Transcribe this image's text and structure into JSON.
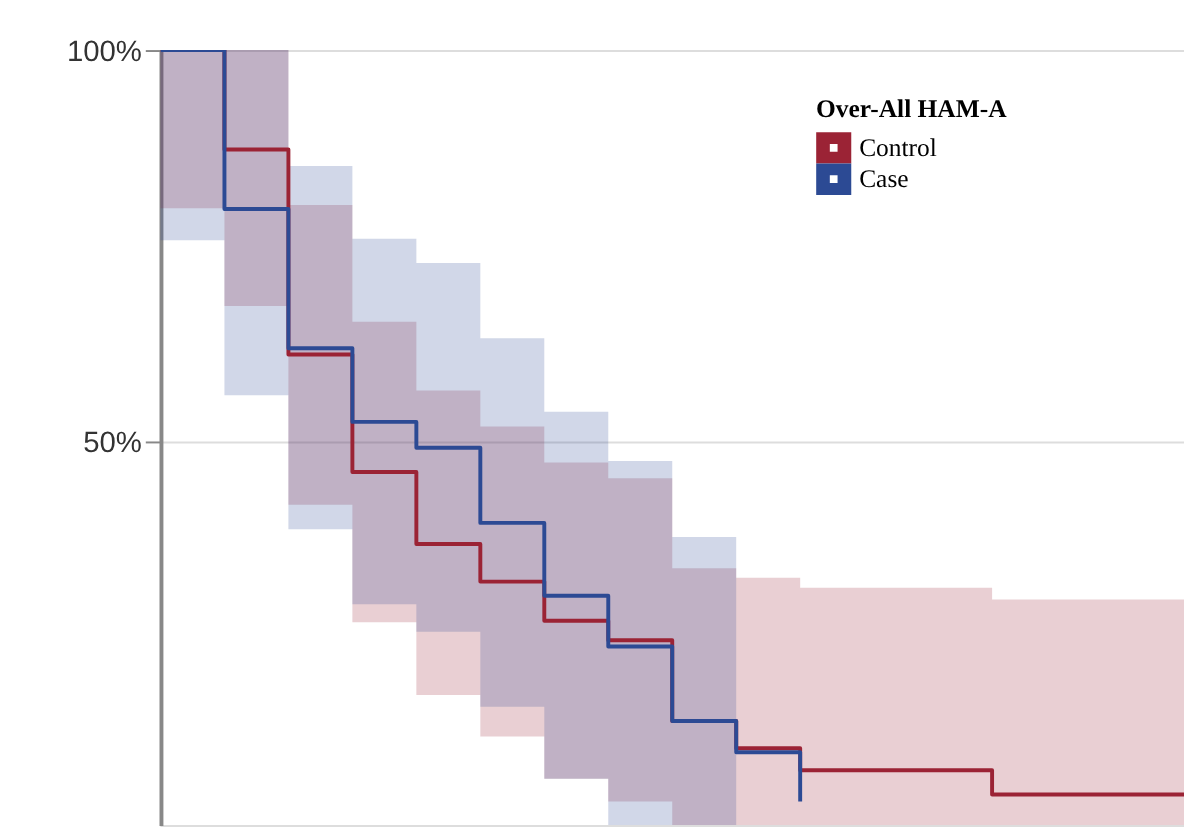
{
  "chart_data": {
    "type": "step",
    "legend_title": "Over-All HAM-A",
    "legend": "top right",
    "grid": "y",
    "tick_labels": "y",
    "line_style": "solid",
    "ylim": [
      1,
      100
    ],
    "categories": [
      null,
      null,
      null,
      null,
      null,
      null,
      null,
      null,
      null,
      null,
      null,
      null,
      null,
      null,
      null,
      null,
      null
    ],
    "yticks": [
      {
        "value": 50,
        "label": "50%"
      },
      {
        "value": 100,
        "label": "100%"
      }
    ],
    "series": [
      {
        "name": "Control",
        "color": "#9b2335",
        "values": [
          100,
          87.3,
          61.1,
          46.1,
          36.9,
          32.1,
          27.1,
          24.6,
          14.3,
          10.8,
          8,
          8,
          8,
          4.9,
          4.9,
          4.9,
          4.9
        ],
        "lower": [
          79.8,
          67.3,
          41.9,
          26.9,
          17.6,
          12.3,
          6.9,
          4,
          1,
          1,
          1,
          1,
          1,
          1,
          1,
          1,
          1
        ],
        "upper": [
          100,
          100,
          80.2,
          65.3,
          56.5,
          51.9,
          47.3,
          45.3,
          33.8,
          32.6,
          31.3,
          31.3,
          31.3,
          29.8,
          29.8,
          29.8,
          29.8
        ]
      },
      {
        "name": "Case",
        "color": "#2c4a94",
        "values": [
          100,
          79.7,
          61.9,
          52.5,
          49.2,
          39.6,
          30.3,
          23.8,
          14.3,
          10.3,
          4,
          null,
          null,
          null,
          null,
          null,
          null
        ],
        "lower": [
          75.7,
          55.9,
          38.8,
          29.2,
          25.7,
          16.1,
          6.9,
          1,
          1,
          1,
          null,
          null,
          null,
          null,
          null,
          null,
          null
        ],
        "upper": [
          100,
          100,
          85.2,
          75.9,
          72.8,
          63.2,
          53.8,
          47.5,
          37.8,
          35.7,
          null,
          null,
          null,
          null,
          null,
          null,
          null
        ]
      }
    ]
  }
}
